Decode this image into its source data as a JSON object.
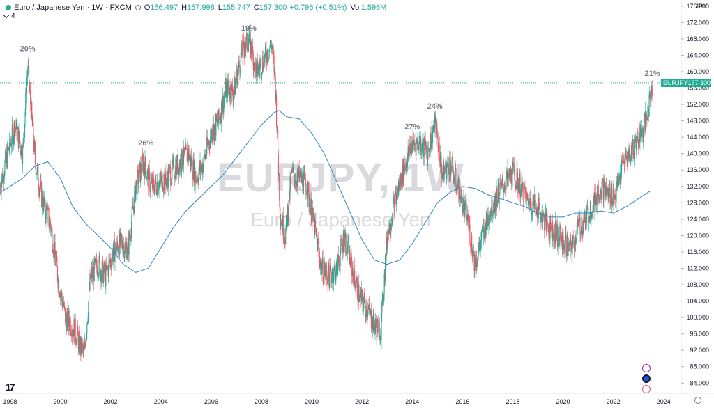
{
  "legend": {
    "symbol": "Euro / Japanese Yen · 1W · FXCM",
    "open_label": "O",
    "open": "156.497",
    "high_label": "H",
    "high": "157.998",
    "low_label": "L",
    "low": "155.747",
    "close_label": "C",
    "close": "157.300",
    "change": "+0.796 (+0.51%)",
    "vol_label": "Vol",
    "vol": "1.596M",
    "indicator_count": "4"
  },
  "watermark": {
    "ticker": "EURJPY, 1W",
    "name": "Euro / Japanese Yen"
  },
  "price_label": {
    "ticker": "EURJPY",
    "value": "157.300"
  },
  "axis_currency": "JPY",
  "icons": [
    "lightning-icon",
    "globe-icon",
    "record-icon",
    "tradingview-logo-icon",
    "settings-icon"
  ],
  "colors": {
    "up": "#22ab94",
    "down": "#f7525f",
    "ma": "#2e86c1",
    "annotation": "#787b86"
  },
  "chart_data": {
    "type": "line",
    "series": [
      {
        "values_note": "weekly candles",
        "x": [
          1997.6,
          1997.9,
          1998.2,
          1998.5,
          1998.7,
          1999.0,
          1999.3,
          1999.6,
          1999.9,
          2000.2,
          2000.5,
          2000.8,
          2000.95,
          2001.2,
          2001.5,
          2001.8,
          2002.1,
          2002.4,
          2002.7,
          2003.0,
          2003.3,
          2003.6,
          2003.9,
          2004.2,
          2004.5,
          2004.8,
          2005.1,
          2005.4,
          2005.7,
          2006.0,
          2006.3,
          2006.6,
          2006.9,
          2007.2,
          2007.5,
          2007.8,
          2008.1,
          2008.4,
          2008.55,
          2008.75,
          2008.95,
          2009.2,
          2009.5,
          2009.8,
          2010.1,
          2010.4,
          2010.7,
          2011.0,
          2011.3,
          2011.6,
          2011.9,
          2012.2,
          2012.5,
          2012.75,
          2013.0,
          2013.3,
          2013.6,
          2013.95,
          2014.3,
          2014.6,
          2014.9,
          2015.2,
          2015.5,
          2015.8,
          2016.2,
          2016.5,
          2016.8,
          2017.1,
          2017.4,
          2017.7,
          2018.0,
          2018.3,
          2018.6,
          2018.9,
          2019.2,
          2019.5,
          2019.8,
          2020.1,
          2020.3,
          2020.6,
          2020.9,
          2021.2,
          2021.5,
          2021.8,
          2022.1,
          2022.4,
          2022.7,
          2022.95,
          2023.2,
          2023.4,
          2023.55
        ],
        "values": [
          132,
          140,
          147,
          140,
          161,
          138,
          128,
          123,
          110,
          100,
          98,
          93,
          91,
          110,
          113,
          110,
          116,
          118,
          117,
          132,
          138,
          132,
          133,
          134,
          136,
          138,
          140,
          134,
          138,
          145,
          148,
          156,
          155,
          164,
          168,
          160,
          163,
          167,
          158,
          125,
          120,
          135,
          134,
          132,
          122,
          112,
          110,
          112,
          120,
          112,
          105,
          102,
          98,
          97,
          120,
          128,
          135,
          142,
          143,
          140,
          148,
          135,
          138,
          132,
          124,
          113,
          120,
          126,
          130,
          133,
          135,
          132,
          128,
          128,
          124,
          122,
          120,
          118,
          116,
          122,
          124,
          128,
          132,
          130,
          130,
          138,
          140,
          144,
          146,
          151,
          157.3
        ]
      },
      {
        "name": "MA",
        "x": [
          1997.6,
          1998.0,
          1998.5,
          1999.0,
          1999.5,
          2000.0,
          2000.5,
          2001.0,
          2001.5,
          2002.0,
          2002.5,
          2003.0,
          2003.5,
          2004.0,
          2004.5,
          2005.0,
          2005.5,
          2006.0,
          2006.5,
          2007.0,
          2007.5,
          2008.0,
          2008.5,
          2008.7,
          2009.0,
          2009.5,
          2010.0,
          2010.5,
          2011.0,
          2011.5,
          2012.0,
          2012.5,
          2013.0,
          2013.5,
          2014.0,
          2014.5,
          2015.0,
          2015.5,
          2016.0,
          2016.5,
          2017.0,
          2017.5,
          2018.0,
          2018.5,
          2019.0,
          2019.5,
          2020.0,
          2020.5,
          2021.0,
          2021.5,
          2022.0,
          2022.5,
          2023.0,
          2023.5
        ],
        "values": [
          130.5,
          132,
          134,
          137,
          138,
          134,
          127,
          123,
          120,
          117,
          113,
          111,
          112,
          117,
          122,
          126,
          129,
          132,
          135,
          139,
          143,
          147,
          150,
          150.5,
          149,
          148.5,
          145,
          140,
          133,
          126,
          119,
          114,
          113,
          114,
          118,
          123,
          128,
          130.5,
          132,
          131.5,
          130,
          129,
          128,
          127,
          125.5,
          124.5,
          124.5,
          125.5,
          125.5,
          126,
          125.5,
          127,
          129,
          131
        ]
      }
    ],
    "peak_labels": [
      {
        "label": "20%",
        "x": 1998.7,
        "y": 165
      },
      {
        "label": "26%",
        "x": 2003.4,
        "y": 142
      },
      {
        "label": "19%",
        "x": 2007.5,
        "y": 170
      },
      {
        "label": "27%",
        "x": 2014.0,
        "y": 146
      },
      {
        "label": "24%",
        "x": 2014.9,
        "y": 151
      },
      {
        "label": "21%",
        "x": 2023.55,
        "y": 159
      }
    ],
    "xlim": [
      1997.6,
      2024.7
    ],
    "ylim": [
      81.5,
      177.5
    ],
    "x_ticks": [
      "1998",
      "2000",
      "2002",
      "2004",
      "2006",
      "2008",
      "2010",
      "2012",
      "2014",
      "2016",
      "2018",
      "2020",
      "2022",
      "2024"
    ],
    "y_ticks": [
      "84.000",
      "88.000",
      "92.000",
      "96.000",
      "100.000",
      "104.000",
      "108.000",
      "112.000",
      "116.000",
      "120.000",
      "124.000",
      "128.000",
      "132.000",
      "136.000",
      "140.000",
      "144.000",
      "148.000",
      "152.000",
      "156.000",
      "160.000",
      "164.000",
      "168.000",
      "172.000",
      "176.000"
    ],
    "grid": false
  }
}
